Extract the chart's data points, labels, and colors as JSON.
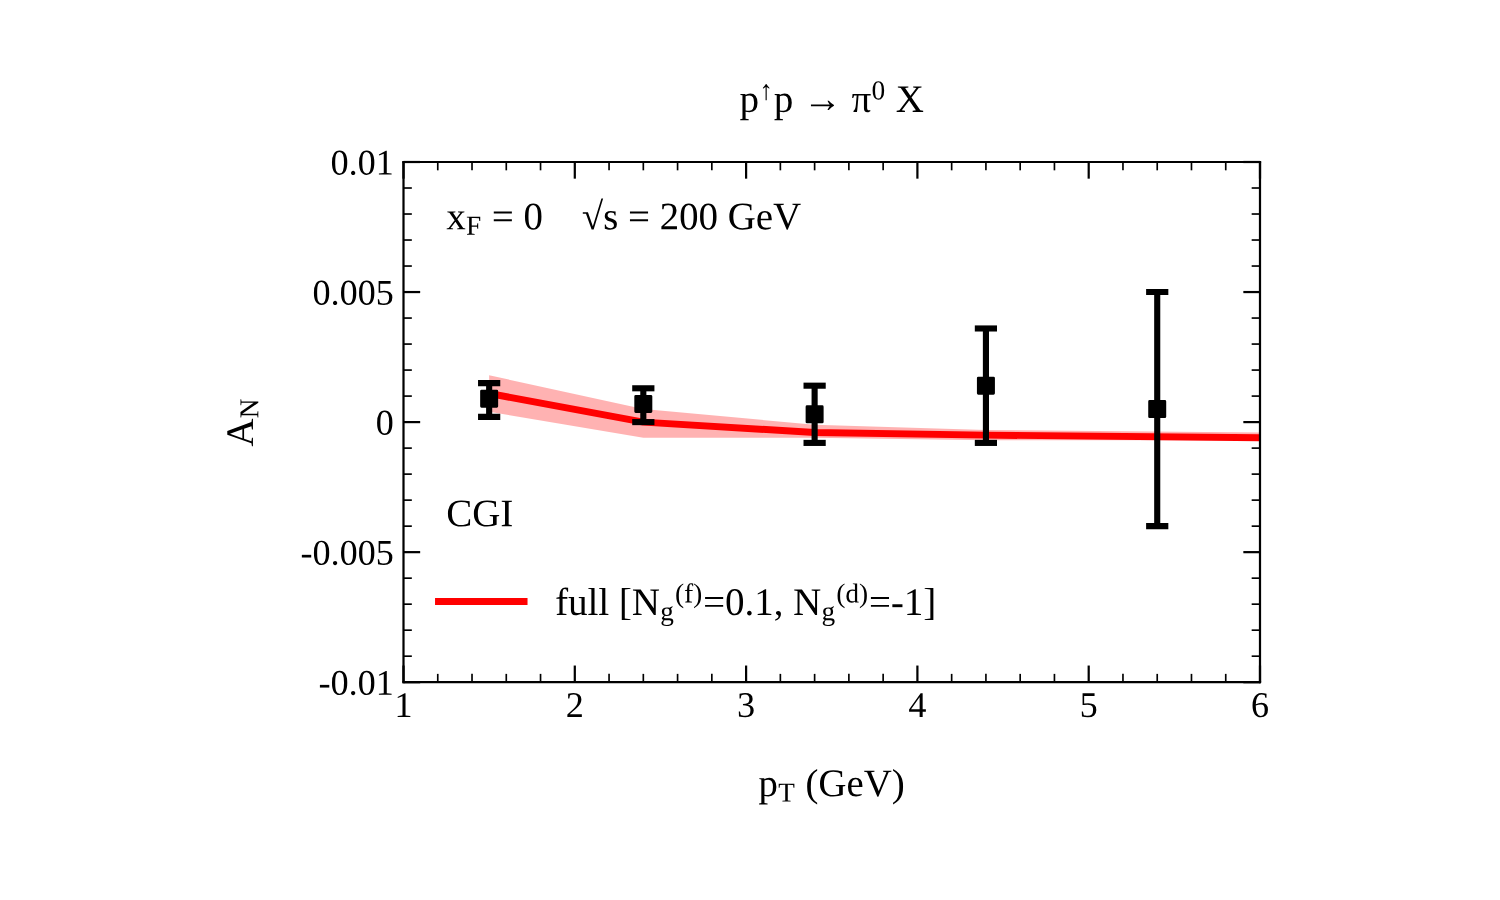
{
  "chart_data": {
    "type": "line",
    "title": "p$^{↑}$p → π$^{0}$ X",
    "xlabel": "p$_{T}$ (GeV)",
    "ylabel": "A$_{N}$",
    "xlim": [
      1,
      6
    ],
    "xticks": [
      1,
      2,
      3,
      4,
      5,
      6
    ],
    "ylim": [
      -0.01,
      0.01
    ],
    "yticks": [
      -0.01,
      -0.005,
      0,
      0.005,
      0.01
    ],
    "annotations": [
      "x$_{F}$ = 0    √s = 200 GeV",
      "CGI"
    ],
    "legend": "bottom left",
    "grid": false,
    "series": [
      {
        "name": "full [N$_{g}$$^{(f)}$=0.1, N$_{g}$$^{(d)}$=-1]",
        "color": "#ff0000",
        "x": [
          1.5,
          2.4,
          3.4,
          4.4,
          6
        ],
        "values": [
          0.0011,
          0.0,
          -0.0004,
          -0.0005,
          -0.0006
        ],
        "lower": [
          0.0004,
          -0.0006,
          -0.0006,
          -0.0007,
          -0.0007
        ],
        "upper": [
          0.0018,
          0.0005,
          -0.0001,
          -0.0003,
          -0.0004
        ]
      },
      {
        "type": "scatter",
        "color": "#000000",
        "marker": "square",
        "x": [
          1.5,
          2.4,
          3.4,
          4.4,
          5.4
        ],
        "values": [
          0.0009,
          0.0007,
          0.0003,
          0.0014,
          0.0005
        ],
        "errors": [
          [
            0.0002,
            0.0015
          ],
          [
            0.0,
            0.0013
          ],
          [
            -0.0008,
            0.0014
          ],
          [
            -0.0008,
            0.0036
          ],
          [
            -0.004,
            0.005
          ]
        ]
      }
    ]
  }
}
